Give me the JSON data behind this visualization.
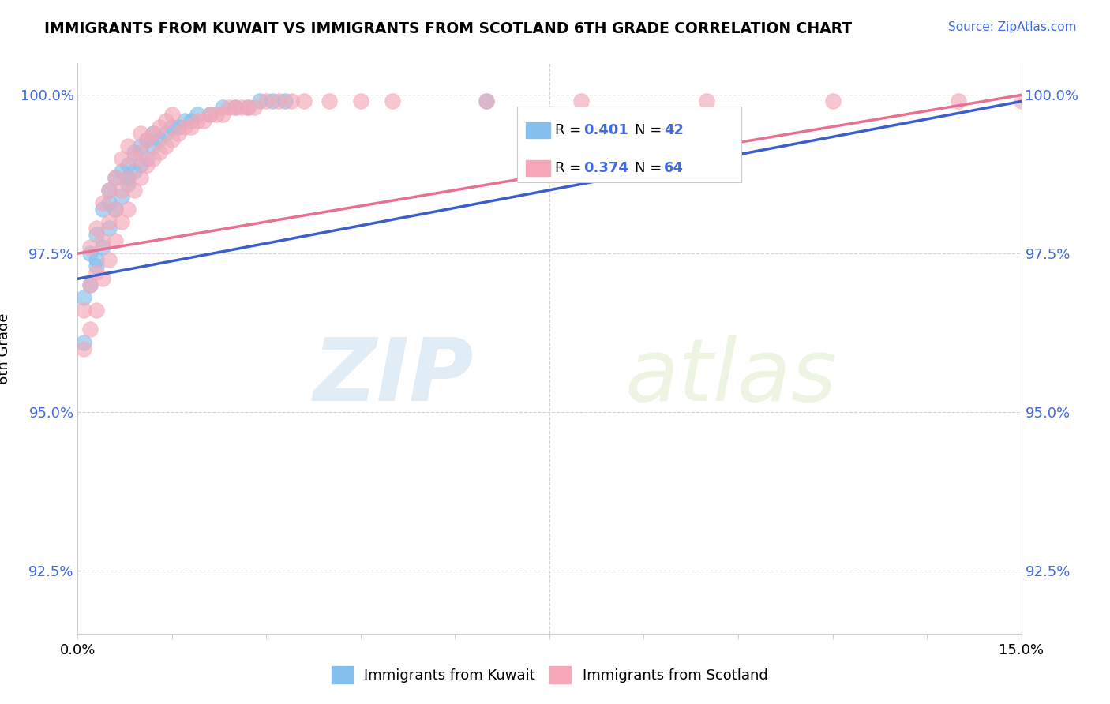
{
  "title": "IMMIGRANTS FROM KUWAIT VS IMMIGRANTS FROM SCOTLAND 6TH GRADE CORRELATION CHART",
  "source": "Source: ZipAtlas.com",
  "ylabel": "6th Grade",
  "ytick_labels": [
    "100.0%",
    "97.5%",
    "95.0%",
    "92.5%"
  ],
  "ytick_values": [
    1.0,
    0.975,
    0.95,
    0.925
  ],
  "xlim": [
    0.0,
    0.15
  ],
  "ylim": [
    0.915,
    1.005
  ],
  "r_kuwait": 0.401,
  "n_kuwait": 42,
  "r_scotland": 0.374,
  "n_scotland": 64,
  "color_kuwait": "#85BFED",
  "color_scotland": "#F4A8B8",
  "line_color_kuwait": "#3A5FCD",
  "line_color_scotland": "#E87090",
  "legend_label_kuwait": "Immigrants from Kuwait",
  "legend_label_scotland": "Immigrants from Scotland",
  "watermark_zip": "ZIP",
  "watermark_atlas": "atlas",
  "kuwait_x": [
    0.001,
    0.002,
    0.002,
    0.003,
    0.003,
    0.004,
    0.004,
    0.005,
    0.005,
    0.006,
    0.006,
    0.007,
    0.007,
    0.008,
    0.008,
    0.009,
    0.009,
    0.01,
    0.01,
    0.011,
    0.011,
    0.012,
    0.012,
    0.013,
    0.014,
    0.015,
    0.016,
    0.017,
    0.018,
    0.019,
    0.021,
    0.023,
    0.025,
    0.027,
    0.029,
    0.031,
    0.033,
    0.065,
    0.001,
    0.003,
    0.005,
    0.008
  ],
  "kuwait_y": [
    0.961,
    0.97,
    0.975,
    0.978,
    0.973,
    0.976,
    0.982,
    0.979,
    0.985,
    0.982,
    0.987,
    0.984,
    0.988,
    0.986,
    0.989,
    0.988,
    0.991,
    0.989,
    0.992,
    0.99,
    0.993,
    0.992,
    0.994,
    0.993,
    0.994,
    0.995,
    0.995,
    0.996,
    0.996,
    0.997,
    0.997,
    0.998,
    0.998,
    0.998,
    0.999,
    0.999,
    0.999,
    0.999,
    0.968,
    0.974,
    0.983,
    0.987
  ],
  "scotland_x": [
    0.001,
    0.001,
    0.002,
    0.002,
    0.002,
    0.003,
    0.003,
    0.003,
    0.004,
    0.004,
    0.004,
    0.005,
    0.005,
    0.005,
    0.006,
    0.006,
    0.006,
    0.007,
    0.007,
    0.007,
    0.008,
    0.008,
    0.008,
    0.009,
    0.009,
    0.01,
    0.01,
    0.01,
    0.011,
    0.011,
    0.012,
    0.012,
    0.013,
    0.013,
    0.014,
    0.014,
    0.015,
    0.015,
    0.016,
    0.017,
    0.018,
    0.019,
    0.02,
    0.021,
    0.022,
    0.023,
    0.024,
    0.025,
    0.026,
    0.027,
    0.028,
    0.03,
    0.032,
    0.034,
    0.036,
    0.04,
    0.045,
    0.05,
    0.065,
    0.08,
    0.1,
    0.12,
    0.14,
    0.15
  ],
  "scotland_y": [
    0.96,
    0.966,
    0.963,
    0.97,
    0.976,
    0.966,
    0.972,
    0.979,
    0.971,
    0.977,
    0.983,
    0.974,
    0.98,
    0.985,
    0.977,
    0.982,
    0.987,
    0.98,
    0.985,
    0.99,
    0.982,
    0.987,
    0.992,
    0.985,
    0.99,
    0.987,
    0.991,
    0.994,
    0.989,
    0.993,
    0.99,
    0.994,
    0.991,
    0.995,
    0.992,
    0.996,
    0.993,
    0.997,
    0.994,
    0.995,
    0.995,
    0.996,
    0.996,
    0.997,
    0.997,
    0.997,
    0.998,
    0.998,
    0.998,
    0.998,
    0.998,
    0.999,
    0.999,
    0.999,
    0.999,
    0.999,
    0.999,
    0.999,
    0.999,
    0.999,
    0.999,
    0.999,
    0.999,
    0.999
  ]
}
